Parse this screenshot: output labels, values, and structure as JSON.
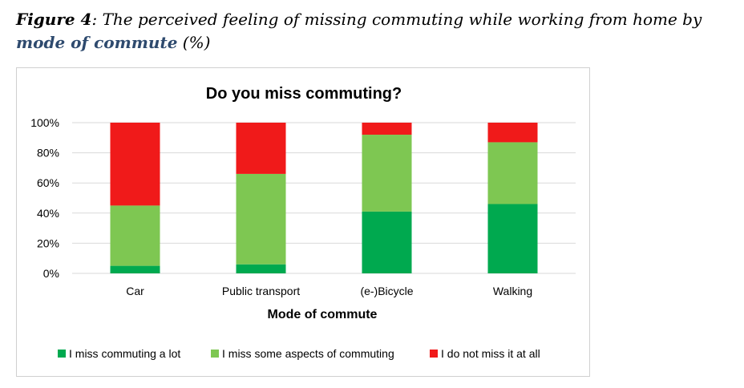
{
  "caption": {
    "figure_label": "Figure 4",
    "separator": ":",
    "text_before": " The perceived feeling of missing commuting while working from home by ",
    "emphasis": "mode of commute",
    "text_after": " (%)"
  },
  "chart_data": {
    "type": "bar",
    "stacked": true,
    "title": "Do you miss commuting?",
    "xlabel": "Mode of commute",
    "ylabel": "",
    "ylim": [
      0,
      100
    ],
    "yticks": [
      0,
      20,
      40,
      60,
      80,
      100
    ],
    "ytick_labels": [
      "0%",
      "20%",
      "40%",
      "60%",
      "80%",
      "100%"
    ],
    "grid": true,
    "legend_position": "bottom",
    "categories": [
      "Car",
      "Public transport",
      "(e-)Bicycle",
      "Walking"
    ],
    "series": [
      {
        "name": "I miss commuting a lot",
        "color": "#00a94f",
        "values": [
          5,
          6,
          41,
          46
        ]
      },
      {
        "name": "I miss some aspects of commuting",
        "color": "#7ec752",
        "values": [
          40,
          60,
          51,
          41
        ]
      },
      {
        "name": "I do not miss it at all",
        "color": "#f01a1a",
        "values": [
          55,
          34,
          8,
          13
        ]
      }
    ]
  }
}
